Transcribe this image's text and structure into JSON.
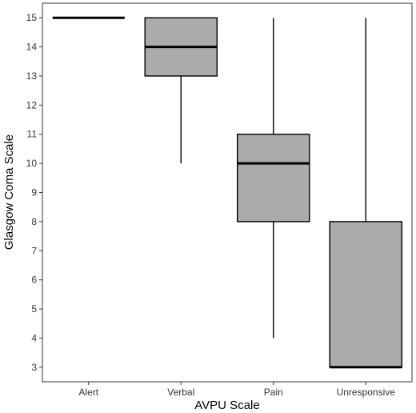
{
  "chart_data": {
    "type": "boxplot",
    "title": "",
    "xlabel": "AVPU Scale",
    "ylabel": "Glasgow Coma Scale",
    "ylim": [
      2.5,
      15.5
    ],
    "yticks": [
      3,
      4,
      5,
      6,
      7,
      8,
      9,
      10,
      11,
      12,
      13,
      14,
      15
    ],
    "grid": false,
    "categories": [
      "Alert",
      "Verbal",
      "Pain",
      "Unresponsive"
    ],
    "boxes": [
      {
        "category": "Alert",
        "min": 15,
        "q1": 15,
        "median": 15,
        "q3": 15,
        "max": 15
      },
      {
        "category": "Verbal",
        "min": 10,
        "q1": 13,
        "median": 14,
        "q3": 15,
        "max": 15
      },
      {
        "category": "Pain",
        "min": 4,
        "q1": 8,
        "median": 10,
        "q3": 11,
        "max": 15
      },
      {
        "category": "Unresponsive",
        "min": 3,
        "q1": 3,
        "median": 3,
        "q3": 8,
        "max": 15
      }
    ],
    "colors": {
      "box_fill": "#ababab",
      "line": "#000000",
      "panel_border": "#333333",
      "background": "#ffffff"
    }
  }
}
